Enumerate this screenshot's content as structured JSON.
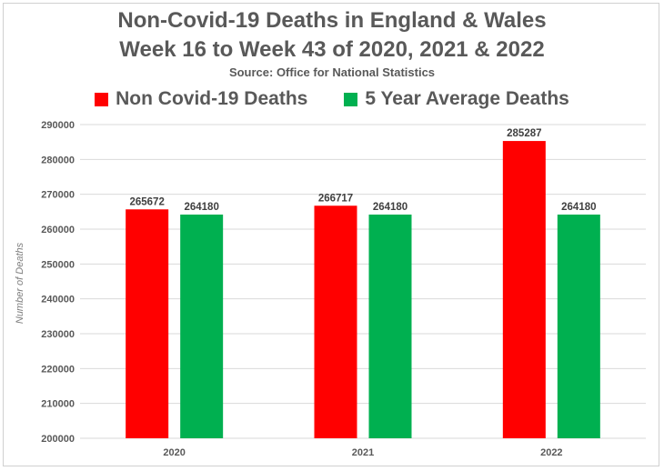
{
  "chart_data": {
    "type": "bar",
    "title": "Non-Covid-19 Deaths in England & Wales",
    "title_line2": "Week 16 to Week 43 of 2020, 2021 & 2022",
    "subtitle": "Source: Office for National Statistics",
    "xlabel": "",
    "ylabel": "Number of Deaths",
    "categories": [
      "2020",
      "2021",
      "2022"
    ],
    "series": [
      {
        "name": "Non Covid-19 Deaths",
        "color": "#ff0000",
        "values": [
          265672,
          266717,
          285287
        ]
      },
      {
        "name": "5 Year Average Deaths",
        "color": "#00b050",
        "values": [
          264180,
          264180,
          264180
        ]
      }
    ],
    "ylim": [
      200000,
      290000
    ],
    "yticks": [
      200000,
      210000,
      220000,
      230000,
      240000,
      250000,
      260000,
      270000,
      280000,
      290000
    ],
    "grid": true,
    "legend_position": "top"
  }
}
